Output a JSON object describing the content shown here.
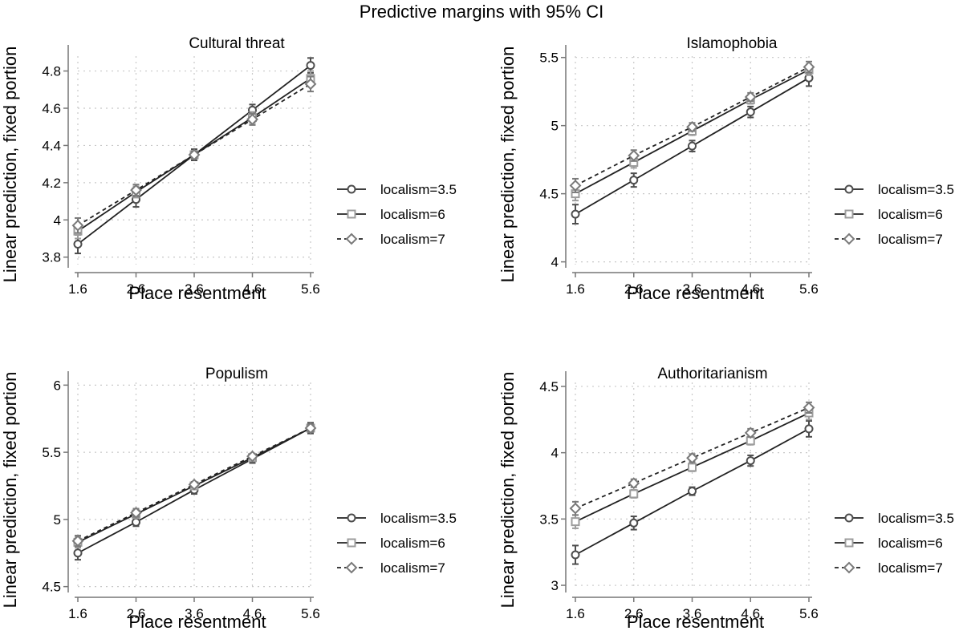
{
  "title": "Predictive margins with 95% CI",
  "colors": {
    "localism_3_5": "#4d4d4d",
    "localism_6": "#9c9c9c",
    "localism_7": "#7a7a7a",
    "axis": "#777777",
    "grid": "#c8c8c8"
  },
  "chart_data": [
    {
      "type": "line",
      "title": "Cultural threat",
      "xlabel": "Place resentment",
      "ylabel": "Linear prediction, fixed portion",
      "x": [
        1.6,
        2.6,
        3.6,
        4.6,
        5.6
      ],
      "xticks": [
        "1.6",
        "2.6",
        "3.6",
        "4.6",
        "5.6"
      ],
      "ylim": [
        3.76,
        4.88
      ],
      "yticks": [
        3.8,
        4,
        4.2,
        4.4,
        4.6,
        4.8
      ],
      "ytick_labels": [
        "3.8",
        "4",
        "4.2",
        "4.4",
        "4.6",
        "4.8"
      ],
      "legend": [
        "localism=3.5",
        "localism=6",
        "localism=7"
      ],
      "series": [
        {
          "name": "localism=3.5",
          "values": [
            3.87,
            4.11,
            4.35,
            4.59,
            4.83
          ],
          "ci": [
            0.05,
            0.04,
            0.03,
            0.03,
            0.04
          ]
        },
        {
          "name": "localism=6",
          "values": [
            3.94,
            4.15,
            4.35,
            4.55,
            4.76
          ],
          "ci": [
            0.04,
            0.03,
            0.02,
            0.03,
            0.04
          ]
        },
        {
          "name": "localism=7",
          "values": [
            3.97,
            4.16,
            4.35,
            4.54,
            4.73
          ],
          "ci": [
            0.04,
            0.03,
            0.02,
            0.03,
            0.04
          ]
        }
      ]
    },
    {
      "type": "line",
      "title": "Islamophobia",
      "xlabel": "Place resentment",
      "ylabel": "Linear prediction, fixed portion",
      "x": [
        1.6,
        2.6,
        3.6,
        4.6,
        5.6
      ],
      "xticks": [
        "1.6",
        "2.6",
        "3.6",
        "4.6",
        "5.6"
      ],
      "ylim": [
        3.98,
        5.51
      ],
      "yticks": [
        4,
        4.5,
        5,
        5.5
      ],
      "ytick_labels": [
        "4",
        "4.5",
        "5",
        "5.5"
      ],
      "legend": [
        "localism=3.5",
        "localism=6",
        "localism=7"
      ],
      "series": [
        {
          "name": "localism=3.5",
          "values": [
            4.35,
            4.6,
            4.85,
            5.1,
            5.35
          ],
          "ci": [
            0.07,
            0.05,
            0.04,
            0.04,
            0.06
          ]
        },
        {
          "name": "localism=6",
          "values": [
            4.5,
            4.73,
            4.96,
            5.19,
            5.41
          ],
          "ci": [
            0.05,
            0.04,
            0.03,
            0.03,
            0.04
          ]
        },
        {
          "name": "localism=7",
          "values": [
            4.56,
            4.78,
            4.99,
            5.21,
            5.43
          ],
          "ci": [
            0.05,
            0.04,
            0.03,
            0.03,
            0.04
          ]
        }
      ]
    },
    {
      "type": "line",
      "title": "Populism",
      "xlabel": "Place resentment",
      "ylabel": "Linear prediction, fixed portion",
      "x": [
        1.6,
        2.6,
        3.6,
        4.6,
        5.6
      ],
      "xticks": [
        "1.6",
        "2.6",
        "3.6",
        "4.6",
        "5.6"
      ],
      "ylim": [
        4.48,
        6.02
      ],
      "yticks": [
        4.5,
        5,
        5.5,
        6
      ],
      "ytick_labels": [
        "4.5",
        "5",
        "5.5",
        "6"
      ],
      "legend": [
        "localism=3.5",
        "localism=6",
        "localism=7"
      ],
      "series": [
        {
          "name": "localism=3.5",
          "values": [
            4.75,
            4.98,
            5.22,
            5.45,
            5.68
          ],
          "ci": [
            0.05,
            0.03,
            0.03,
            0.03,
            0.04
          ]
        },
        {
          "name": "localism=6",
          "values": [
            4.83,
            5.04,
            5.25,
            5.46,
            5.68
          ],
          "ci": [
            0.04,
            0.03,
            0.02,
            0.02,
            0.03
          ]
        },
        {
          "name": "localism=7",
          "values": [
            4.84,
            5.05,
            5.26,
            5.47,
            5.68
          ],
          "ci": [
            0.04,
            0.03,
            0.02,
            0.02,
            0.03
          ]
        }
      ]
    },
    {
      "type": "line",
      "title": "Authoritarianism",
      "xlabel": "Place resentment",
      "ylabel": "Linear prediction, fixed portion",
      "x": [
        1.6,
        2.6,
        3.6,
        4.6,
        5.6
      ],
      "xticks": [
        "1.6",
        "2.6",
        "3.6",
        "4.6",
        "5.6"
      ],
      "ylim": [
        2.97,
        4.53
      ],
      "yticks": [
        3,
        3.5,
        4,
        4.5
      ],
      "ytick_labels": [
        "3",
        "3.5",
        "4",
        "4.5"
      ],
      "legend": [
        "localism=3.5",
        "localism=6",
        "localism=7"
      ],
      "series": [
        {
          "name": "localism=3.5",
          "values": [
            3.23,
            3.47,
            3.71,
            3.94,
            4.18
          ],
          "ci": [
            0.07,
            0.05,
            0.03,
            0.04,
            0.06
          ]
        },
        {
          "name": "localism=6",
          "values": [
            3.48,
            3.69,
            3.89,
            4.09,
            4.3
          ],
          "ci": [
            0.05,
            0.03,
            0.03,
            0.03,
            0.05
          ]
        },
        {
          "name": "localism=7",
          "values": [
            3.58,
            3.77,
            3.96,
            4.15,
            4.34
          ],
          "ci": [
            0.05,
            0.03,
            0.03,
            0.03,
            0.04
          ]
        }
      ]
    }
  ]
}
